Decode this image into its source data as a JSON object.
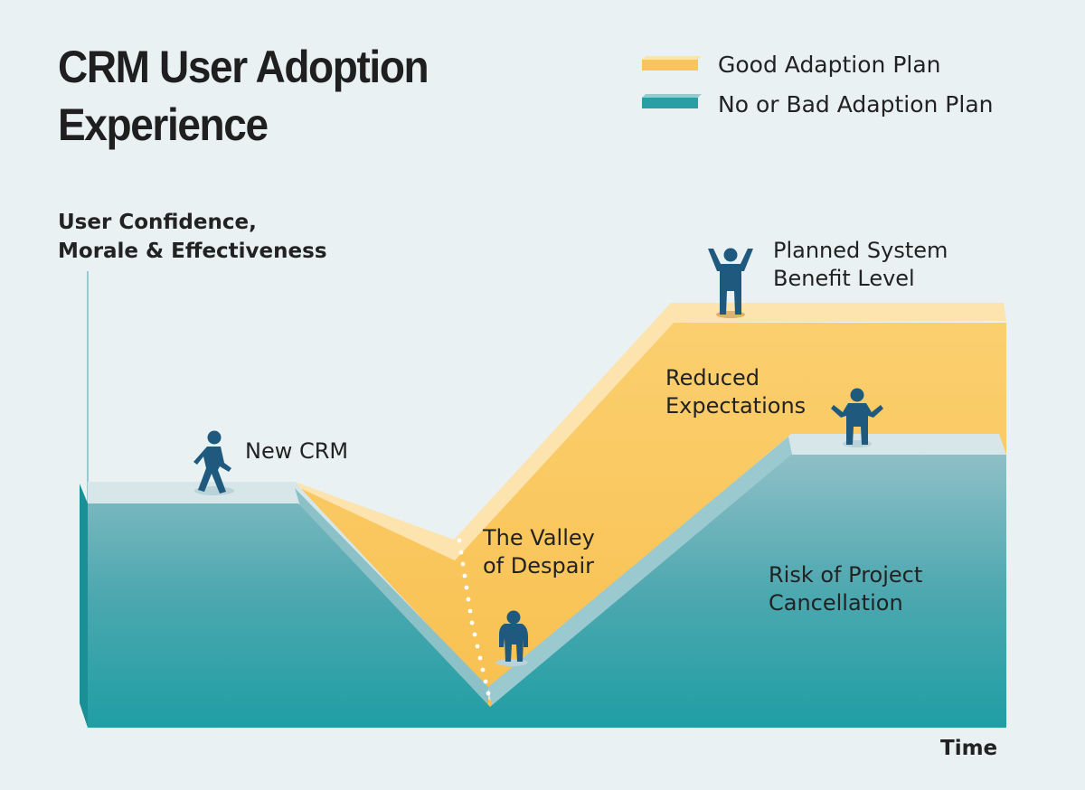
{
  "title": {
    "line1": "CRM User Adoption",
    "line2": "Experience"
  },
  "legend": [
    {
      "label": "Good Adaption Plan",
      "color": "#f9c55a"
    },
    {
      "label": "No or Bad Adaption Plan",
      "color": "#2a9ea5"
    }
  ],
  "axes": {
    "y_label_line1": "User Confidence,",
    "y_label_line2": "Morale & Effectiveness",
    "x_label": "Time"
  },
  "stages": {
    "new_crm": "New CRM",
    "valley_line1": "The Valley",
    "valley_line2": "of Despair",
    "planned_line1": "Planned System",
    "planned_line2": "Benefit Level",
    "reduced_line1": "Reduced",
    "reduced_line2": "Expectations",
    "risk_line1": "Risk of Project",
    "risk_line2": "Cancellation"
  },
  "colors": {
    "background": "#e9f1f3",
    "good_plan": "#f9c55a",
    "good_plan_top": "#fde3ad",
    "bad_plan": "#2a9ea5",
    "bad_plan_top": "#d6e6e9",
    "figure": "#1f5a7e",
    "text": "#222222"
  }
}
